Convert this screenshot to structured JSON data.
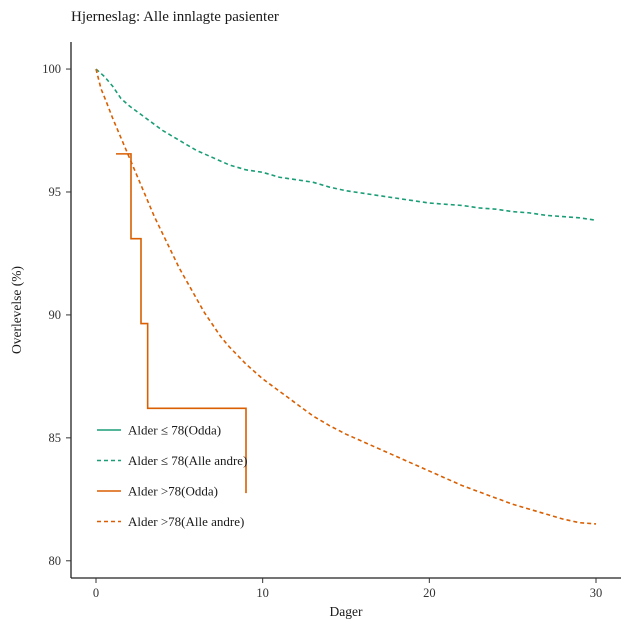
{
  "chart_data": {
    "type": "line",
    "title": "Hjerneslag: Alle innlagte pasienter",
    "xlabel": "Dager",
    "ylabel": "Overlevelse (%)",
    "xlim": [
      -1.5,
      31.5
    ],
    "ylim": [
      79.3,
      101.1
    ],
    "x_ticks": [
      0,
      10,
      20,
      30
    ],
    "y_ticks": [
      80,
      85,
      90,
      95,
      100
    ],
    "grid": false,
    "legend_position": "bottom-left",
    "series": [
      {
        "name": "Alder ≤ 78(Odda)",
        "color": "#1b9e77",
        "dash": "solid",
        "step": true,
        "points": []
      },
      {
        "name": "Alder ≤ 78(Alle andre)",
        "color": "#1b9e77",
        "dash": "dashed",
        "step": false,
        "points": [
          [
            0,
            100
          ],
          [
            0.5,
            99.7
          ],
          [
            1,
            99.3
          ],
          [
            1.5,
            98.8
          ],
          [
            2,
            98.5
          ],
          [
            3,
            98
          ],
          [
            4,
            97.5
          ],
          [
            5,
            97.1
          ],
          [
            6,
            96.7
          ],
          [
            7,
            96.4
          ],
          [
            8,
            96.1
          ],
          [
            9,
            95.9
          ],
          [
            10,
            95.8
          ],
          [
            11,
            95.6
          ],
          [
            12,
            95.5
          ],
          [
            13,
            95.4
          ],
          [
            14,
            95.2
          ],
          [
            15,
            95.05
          ],
          [
            16,
            94.95
          ],
          [
            17,
            94.85
          ],
          [
            18,
            94.75
          ],
          [
            19,
            94.65
          ],
          [
            20,
            94.55
          ],
          [
            21,
            94.5
          ],
          [
            22,
            94.45
          ],
          [
            23,
            94.35
          ],
          [
            24,
            94.3
          ],
          [
            25,
            94.2
          ],
          [
            26,
            94.15
          ],
          [
            27,
            94.05
          ],
          [
            28,
            94
          ],
          [
            29,
            93.95
          ],
          [
            30,
            93.85
          ]
        ]
      },
      {
        "name": "Alder >78(Odda)",
        "color": "#d95f02",
        "dash": "solid",
        "step": true,
        "points": [
          [
            1.2,
            96.55
          ],
          [
            2.1,
            96.55
          ],
          [
            2.1,
            93.1
          ],
          [
            2.7,
            93.1
          ],
          [
            2.7,
            89.65
          ],
          [
            3.1,
            89.65
          ],
          [
            3.1,
            86.2
          ],
          [
            9,
            86.2
          ],
          [
            9,
            82.75
          ]
        ]
      },
      {
        "name": "Alder >78(Alle andre)",
        "color": "#d95f02",
        "dash": "dashed",
        "step": false,
        "points": [
          [
            0,
            100
          ],
          [
            0.3,
            99.2
          ],
          [
            0.6,
            98.7
          ],
          [
            1,
            98
          ],
          [
            1.5,
            97.2
          ],
          [
            2,
            96.4
          ],
          [
            2.5,
            95.6
          ],
          [
            3,
            94.8
          ],
          [
            3.5,
            94
          ],
          [
            4,
            93.3
          ],
          [
            4.5,
            92.6
          ],
          [
            5,
            91.9
          ],
          [
            5.5,
            91.3
          ],
          [
            6,
            90.7
          ],
          [
            6.5,
            90.1
          ],
          [
            7,
            89.6
          ],
          [
            7.5,
            89.1
          ],
          [
            8,
            88.7
          ],
          [
            9,
            88
          ],
          [
            10,
            87.4
          ],
          [
            11,
            86.9
          ],
          [
            12,
            86.4
          ],
          [
            13,
            85.9
          ],
          [
            14,
            85.5
          ],
          [
            15,
            85.15
          ],
          [
            16,
            84.85
          ],
          [
            17,
            84.55
          ],
          [
            18,
            84.25
          ],
          [
            19,
            83.95
          ],
          [
            20,
            83.65
          ],
          [
            21,
            83.35
          ],
          [
            22,
            83.05
          ],
          [
            23,
            82.8
          ],
          [
            24,
            82.55
          ],
          [
            25,
            82.3
          ],
          [
            26,
            82.1
          ],
          [
            27,
            81.9
          ],
          [
            28,
            81.7
          ],
          [
            29,
            81.55
          ],
          [
            30,
            81.5
          ]
        ]
      }
    ]
  }
}
